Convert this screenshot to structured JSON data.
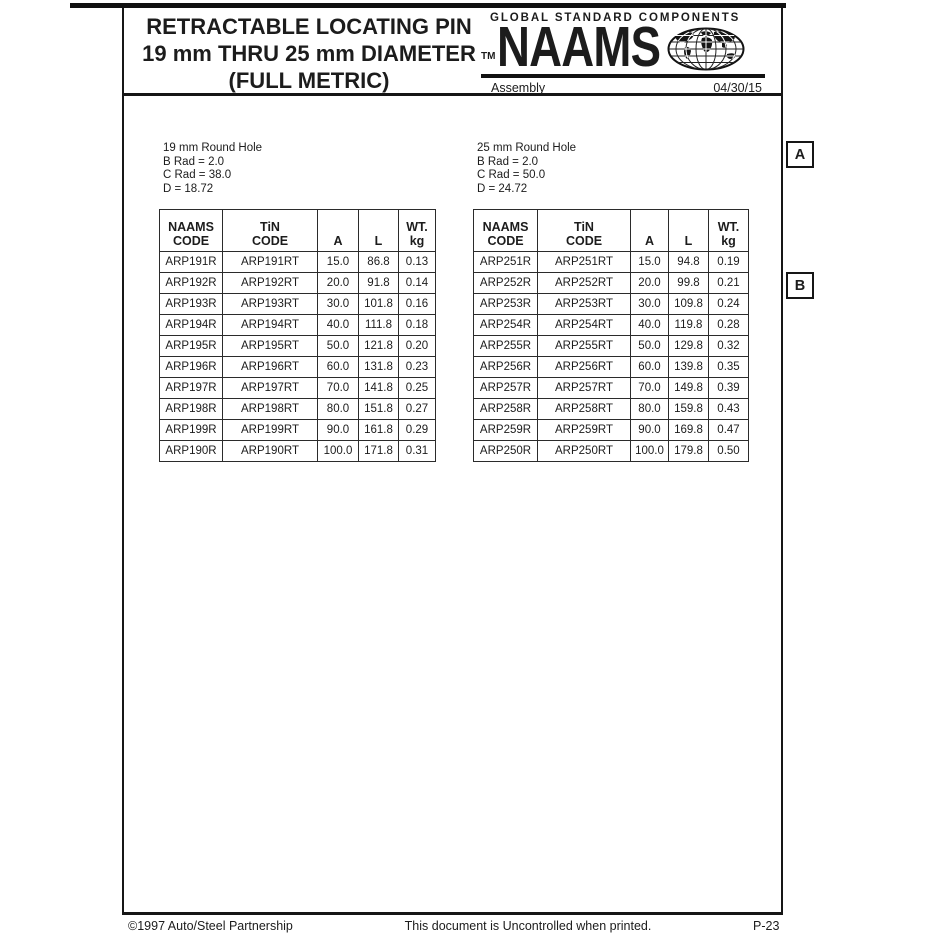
{
  "page": {
    "ink": "#1c1c1c",
    "paper": "#ffffff"
  },
  "header": {
    "title_lines": [
      "RETRACTABLE LOCATING PIN",
      "19 mm THRU 25 mm DIAMETER",
      "(FULL METRIC)"
    ],
    "logo": {
      "tagline": "GLOBAL STANDARD COMPONENTS",
      "trademark": "TM",
      "brand": "NAAMS",
      "globe_icon": "globe-icon",
      "category": "Assembly",
      "date": "04/30/15"
    }
  },
  "zone_labels": [
    {
      "label": "A"
    },
    {
      "label": "B"
    }
  ],
  "tables": [
    {
      "notes": [
        "19 mm Round Hole",
        "B Rad = 2.0",
        "C Rad = 38.0",
        "D = 18.72"
      ],
      "columns": [
        [
          "NAAMS",
          "CODE"
        ],
        [
          "TiN",
          "CODE"
        ],
        [
          "A"
        ],
        [
          "L"
        ],
        [
          "WT.",
          "kg"
        ]
      ],
      "rows": [
        [
          "ARP191R",
          "ARP191RT",
          "15.0",
          "86.8",
          "0.13"
        ],
        [
          "ARP192R",
          "ARP192RT",
          "20.0",
          "91.8",
          "0.14"
        ],
        [
          "ARP193R",
          "ARP193RT",
          "30.0",
          "101.8",
          "0.16"
        ],
        [
          "ARP194R",
          "ARP194RT",
          "40.0",
          "111.8",
          "0.18"
        ],
        [
          "ARP195R",
          "ARP195RT",
          "50.0",
          "121.8",
          "0.20"
        ],
        [
          "ARP196R",
          "ARP196RT",
          "60.0",
          "131.8",
          "0.23"
        ],
        [
          "ARP197R",
          "ARP197RT",
          "70.0",
          "141.8",
          "0.25"
        ],
        [
          "ARP198R",
          "ARP198RT",
          "80.0",
          "151.8",
          "0.27"
        ],
        [
          "ARP199R",
          "ARP199RT",
          "90.0",
          "161.8",
          "0.29"
        ],
        [
          "ARP190R",
          "ARP190RT",
          "100.0",
          "171.8",
          "0.31"
        ]
      ]
    },
    {
      "notes": [
        "25 mm Round Hole",
        "B Rad = 2.0",
        "C Rad = 50.0",
        "D = 24.72"
      ],
      "columns": [
        [
          "NAAMS",
          "CODE"
        ],
        [
          "TiN",
          "CODE"
        ],
        [
          "A"
        ],
        [
          "L"
        ],
        [
          "WT.",
          "kg"
        ]
      ],
      "rows": [
        [
          "ARP251R",
          "ARP251RT",
          "15.0",
          "94.8",
          "0.19"
        ],
        [
          "ARP252R",
          "ARP252RT",
          "20.0",
          "99.8",
          "0.21"
        ],
        [
          "ARP253R",
          "ARP253RT",
          "30.0",
          "109.8",
          "0.24"
        ],
        [
          "ARP254R",
          "ARP254RT",
          "40.0",
          "119.8",
          "0.28"
        ],
        [
          "ARP255R",
          "ARP255RT",
          "50.0",
          "129.8",
          "0.32"
        ],
        [
          "ARP256R",
          "ARP256RT",
          "60.0",
          "139.8",
          "0.35"
        ],
        [
          "ARP257R",
          "ARP257RT",
          "70.0",
          "149.8",
          "0.39"
        ],
        [
          "ARP258R",
          "ARP258RT",
          "80.0",
          "159.8",
          "0.43"
        ],
        [
          "ARP259R",
          "ARP259RT",
          "90.0",
          "169.8",
          "0.47"
        ],
        [
          "ARP250R",
          "ARP250RT",
          "100.0",
          "179.8",
          "0.50"
        ]
      ]
    }
  ],
  "footer": {
    "copyright": "©1997 Auto/Steel Partnership",
    "notice": "This document is Uncontrolled when printed.",
    "page_number": "P-23"
  }
}
